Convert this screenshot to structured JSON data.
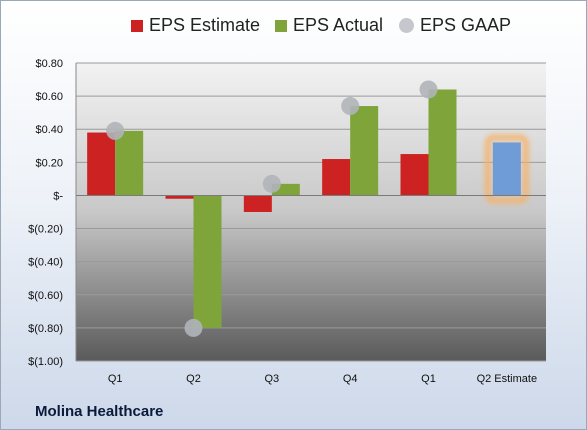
{
  "company": "Molina Healthcare",
  "chart_data": {
    "type": "bar",
    "title": "",
    "xlabel": "",
    "ylabel": "",
    "categories": [
      "Q1",
      "Q2",
      "Q3",
      "Q4",
      "Q1",
      "Q2 Estimate"
    ],
    "series": [
      {
        "name": "EPS Estimate",
        "color": "#cc2222",
        "kind": "bar",
        "values": [
          0.38,
          -0.02,
          -0.1,
          0.22,
          0.25,
          null
        ]
      },
      {
        "name": "EPS Actual",
        "color": "#7fa43a",
        "kind": "bar",
        "values": [
          0.39,
          -0.8,
          0.07,
          0.54,
          0.64,
          null
        ]
      },
      {
        "name": "EPS GAAP",
        "color": "#b0b4b8",
        "kind": "point",
        "values": [
          0.39,
          -0.8,
          0.07,
          0.54,
          0.64,
          null
        ]
      },
      {
        "name": "Q2 Estimate",
        "color": "#6f9bd6",
        "highlight_color": "#f5b26b",
        "kind": "estimate-bar",
        "values": [
          null,
          null,
          null,
          null,
          null,
          0.32
        ]
      }
    ],
    "ylim": [
      -1.0,
      0.8
    ],
    "yticks": [
      0.8,
      0.6,
      0.4,
      0.2,
      0.0,
      -0.2,
      -0.4,
      -0.6,
      -0.8,
      -1.0
    ],
    "ytick_labels": [
      "$0.80",
      "$0.60",
      "$0.40",
      "$0.20",
      "$-",
      "$(0.20)",
      "$(0.40)",
      "$(0.60)",
      "$(0.80)",
      "$(1.00)"
    ],
    "grid": true,
    "legend": {
      "position": "top",
      "entries": [
        "EPS Estimate",
        "EPS Actual",
        "EPS GAAP"
      ]
    }
  }
}
